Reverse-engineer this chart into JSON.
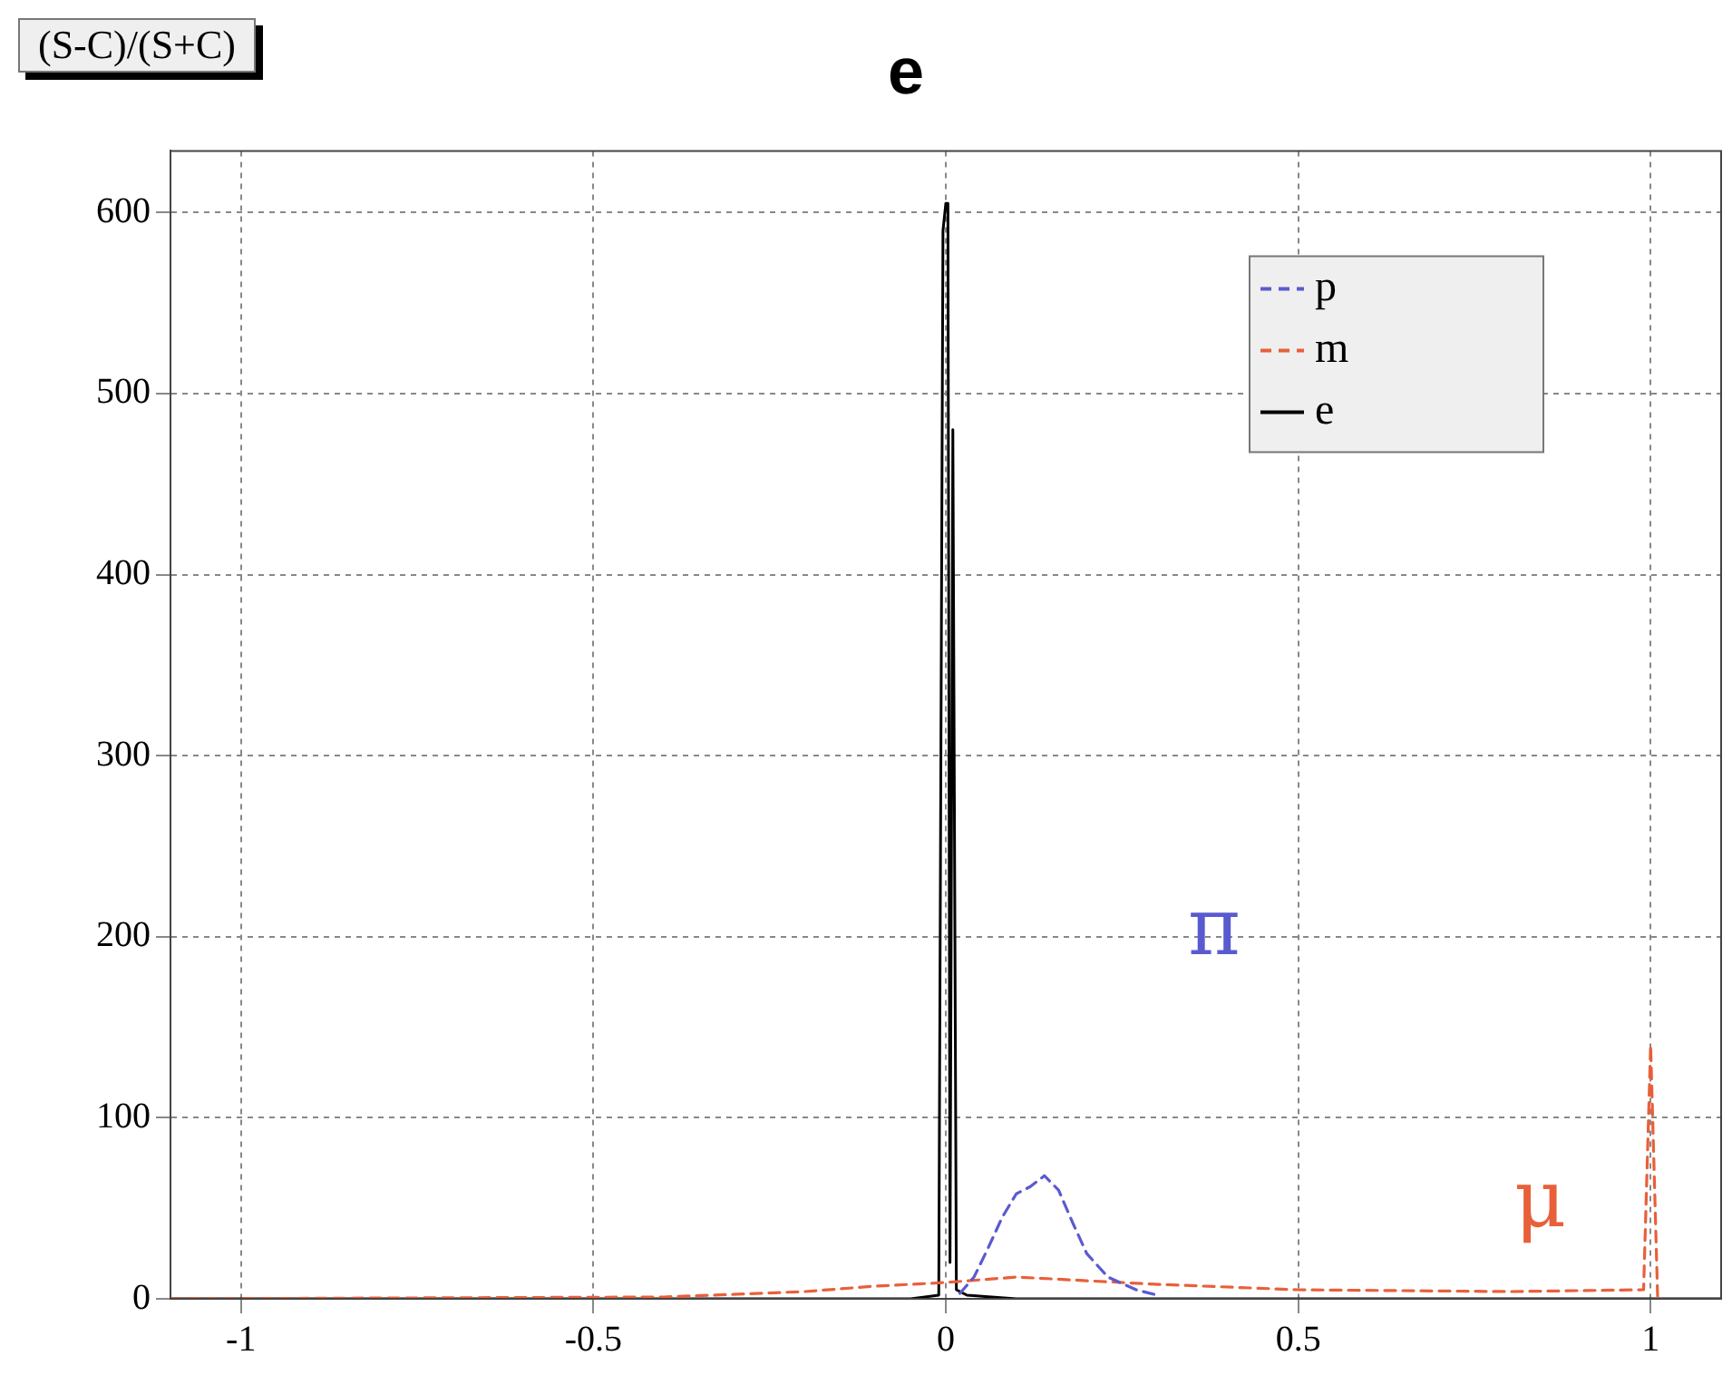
{
  "chart_data": {
    "type": "line",
    "title": "e",
    "annotations": [
      "(S-C)/(S+C)",
      "π",
      "μ"
    ],
    "xlim": [
      -1.1,
      1.1
    ],
    "xticks": [
      -1,
      -0.5,
      0,
      0.5,
      1
    ],
    "ylim": [
      0,
      634
    ],
    "yticks": [
      0,
      100,
      200,
      300,
      400,
      500,
      600
    ],
    "grid": true,
    "legend": "top right",
    "marker": "none",
    "series": [
      {
        "name": "p",
        "color": "#5a5ad0",
        "line_style": "dashed",
        "x": [
          0.02,
          0.04,
          0.06,
          0.08,
          0.1,
          0.12,
          0.14,
          0.16,
          0.18,
          0.2,
          0.23,
          0.27,
          0.3
        ],
        "values": [
          3,
          12,
          28,
          45,
          58,
          62,
          68,
          60,
          42,
          25,
          12,
          5,
          2
        ]
      },
      {
        "name": "m",
        "color": "#e8603a",
        "line_style": "dashed",
        "x": [
          -1.1,
          -0.4,
          -0.2,
          -0.1,
          0,
          0.1,
          0.2,
          0.3,
          0.5,
          0.8,
          0.99,
          1,
          1.01
        ],
        "values": [
          0,
          1,
          4,
          7,
          9,
          12,
          10,
          8,
          5,
          4,
          5,
          140,
          0
        ]
      },
      {
        "name": "e",
        "color": "#000000",
        "line_style": "solid",
        "x": [
          -1.1,
          -0.05,
          -0.01,
          -0.004,
          0,
          0.003,
          0.006,
          0.01,
          0.015,
          0.03,
          0.1,
          1.1
        ],
        "values": [
          0,
          0,
          2,
          590,
          605,
          605,
          20,
          480,
          5,
          2,
          0,
          0
        ]
      }
    ]
  }
}
